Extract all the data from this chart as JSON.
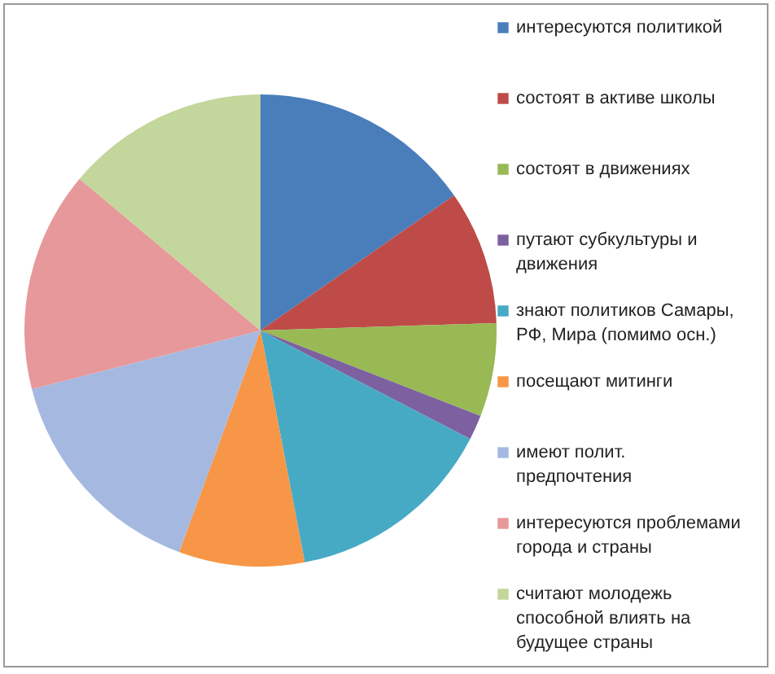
{
  "chart_data": {
    "type": "pie",
    "categories": [
      "интересуются политикой",
      "состоят в активе школы",
      "состоят в движениях",
      "путают субкультуры и движения",
      "знают политиков Самары, РФ, Мира (помимо осн.)",
      "посещают митинги",
      "имеют полит. предпочтения",
      "интересуются проблемами города и страны",
      "считают молодежь способной влиять на будущее страны"
    ],
    "values": [
      15.3,
      9.2,
      6.4,
      1.7,
      14.4,
      8.6,
      15.4,
      15.1,
      13.9
    ],
    "colors": [
      "#4a7ebb",
      "#be4b48",
      "#98b954",
      "#7d60a0",
      "#46aac5",
      "#f79646",
      "#a5b9e0",
      "#e6989a",
      "#c3d69b"
    ],
    "legend": "right"
  }
}
